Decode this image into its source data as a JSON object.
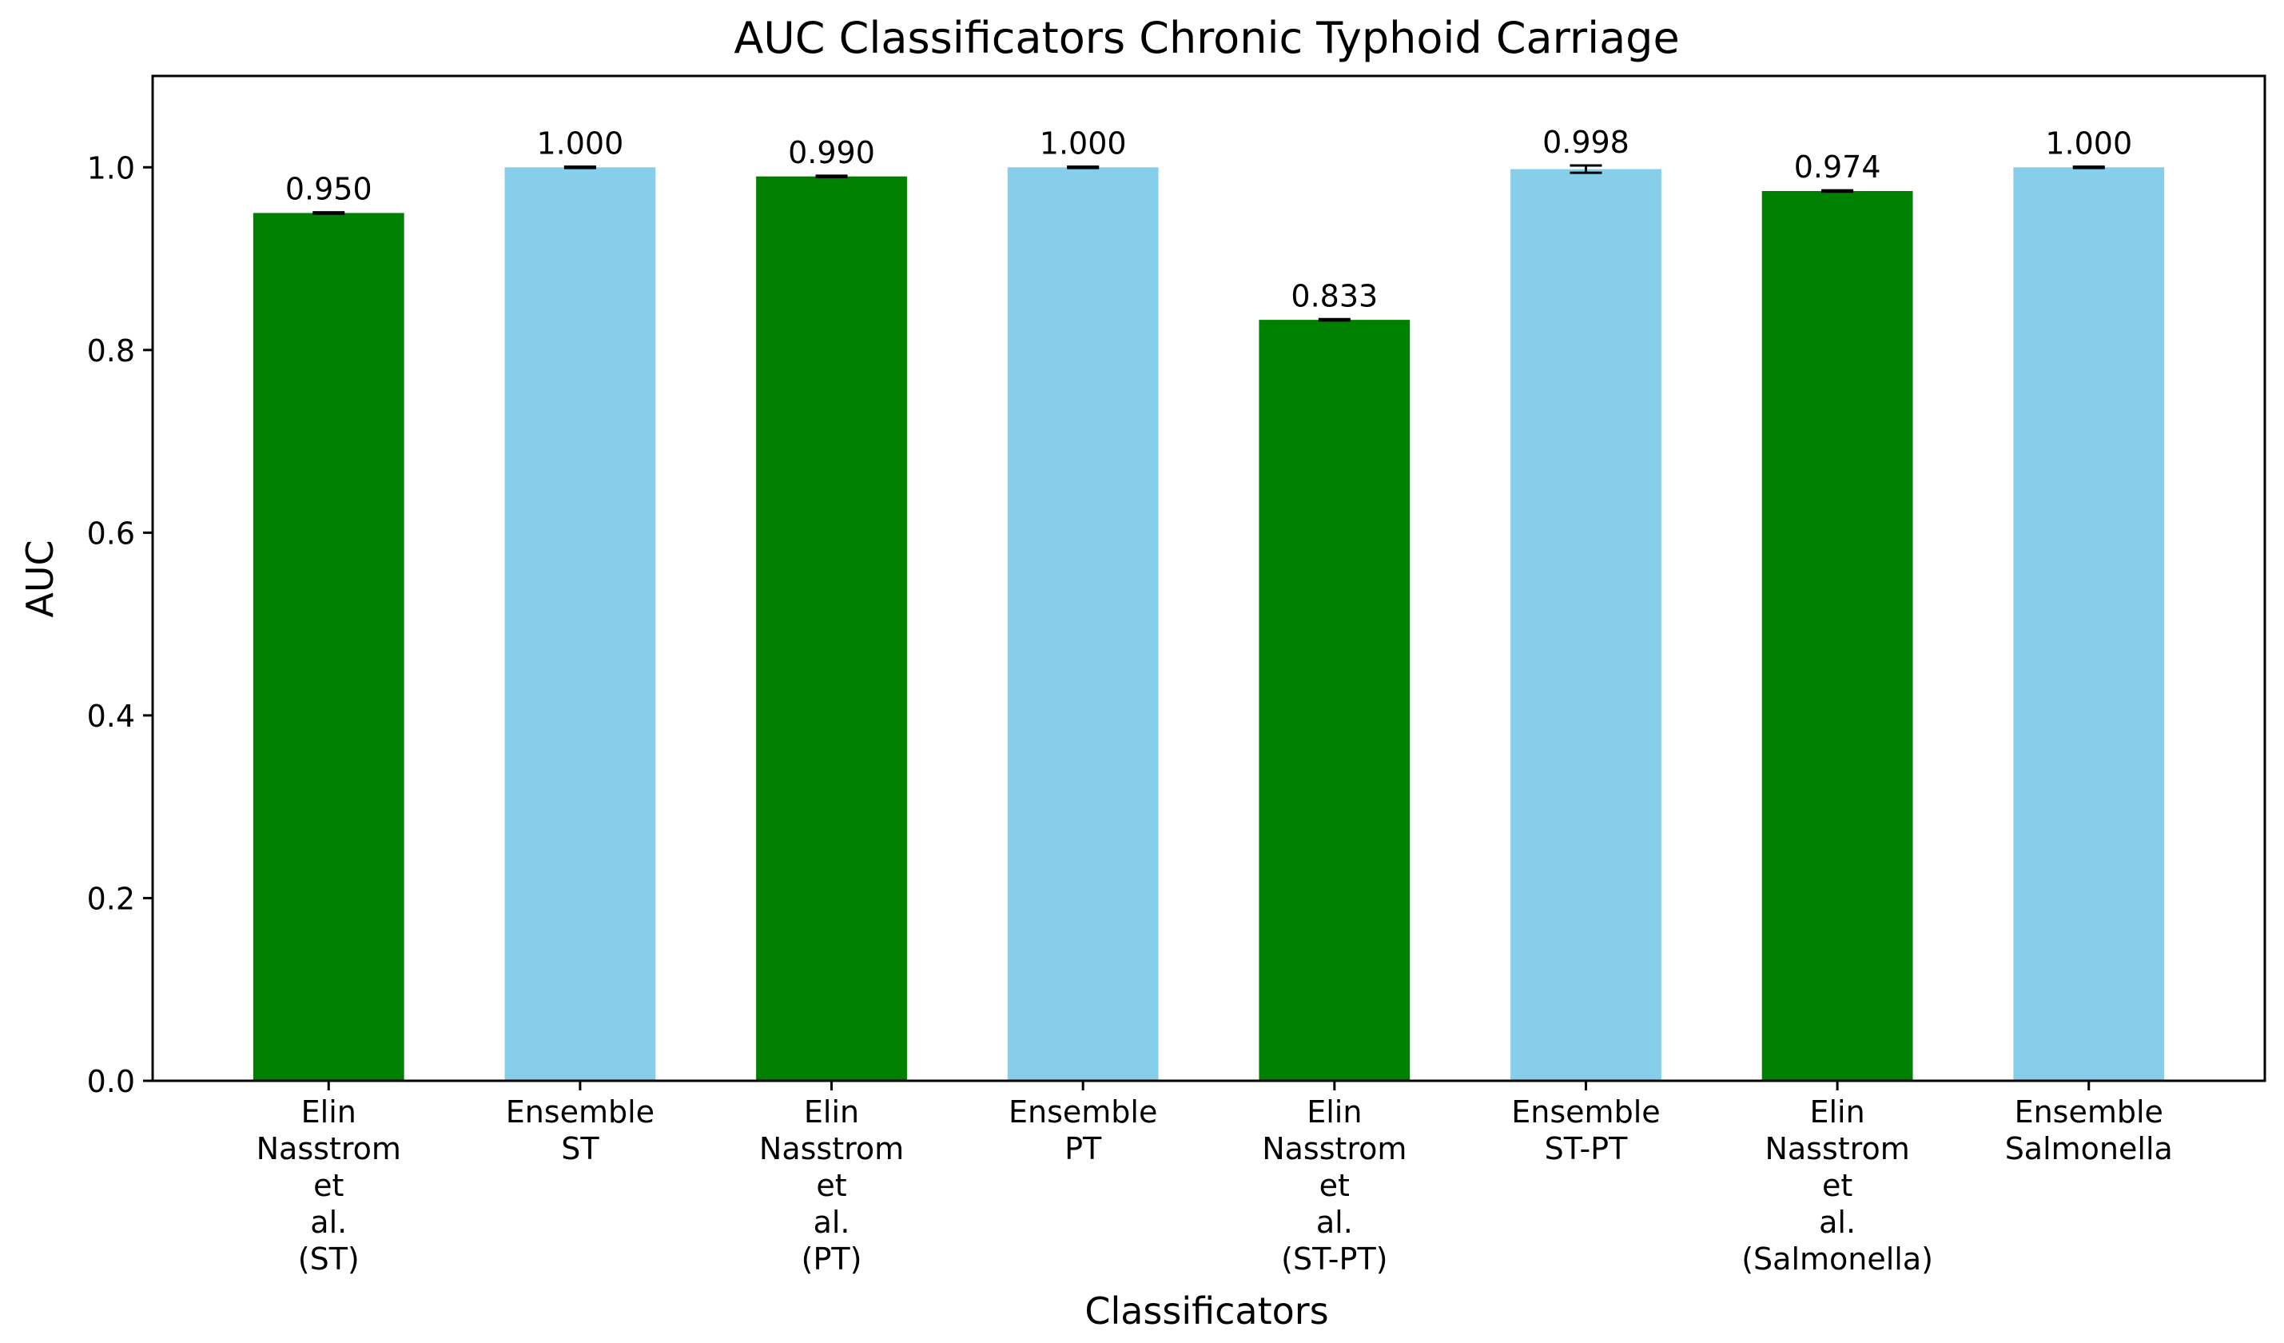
{
  "chart_data": {
    "type": "bar",
    "title": "AUC Classificators Chronic Typhoid Carriage",
    "xlabel": "Classificators",
    "ylabel": "AUC",
    "ylim": [
      0,
      1.1
    ],
    "yticks": [
      "0.0",
      "0.2",
      "0.4",
      "0.6",
      "0.8",
      "1.0"
    ],
    "grid": false,
    "legend": "none",
    "categories": [
      [
        "Elin",
        "Nasstrom",
        "et",
        "al.",
        "(ST)"
      ],
      [
        "Ensemble",
        "ST"
      ],
      [
        "Elin",
        "Nasstrom",
        "et",
        "al.",
        "(PT)"
      ],
      [
        "Ensemble",
        "PT"
      ],
      [
        "Elin",
        "Nasstrom",
        "et",
        "al.",
        "(ST-PT)"
      ],
      [
        "Ensemble",
        "ST-PT"
      ],
      [
        "Elin",
        "Nasstrom",
        "et",
        "al.",
        "(Salmonella)"
      ],
      [
        "Ensemble",
        "Salmonella"
      ]
    ],
    "values": [
      0.95,
      1.0,
      0.99,
      1.0,
      0.833,
      0.998,
      0.974,
      1.0
    ],
    "value_labels": [
      "0.950",
      "1.000",
      "0.990",
      "1.000",
      "0.833",
      "0.998",
      "0.974",
      "1.000"
    ],
    "errors": [
      0.0007,
      0.0007,
      0.0007,
      0.0007,
      0.0007,
      0.004,
      0.0007,
      0.0007
    ],
    "colors": [
      "#008000",
      "#87ceeb",
      "#008000",
      "#87ceeb",
      "#008000",
      "#87ceeb",
      "#008000",
      "#87ceeb"
    ]
  }
}
